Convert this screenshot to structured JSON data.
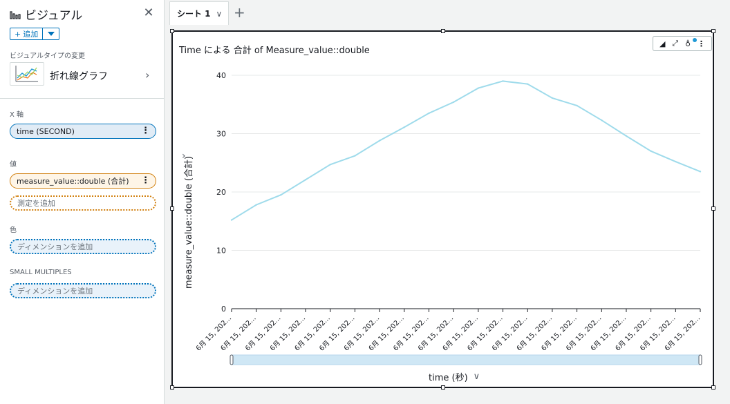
{
  "panel": {
    "title": "ビジュアル",
    "add_label": "追加",
    "visual_type_label": "ビジュアルタイプの変更",
    "visual_type_name": "折れ線グラフ",
    "x_axis_label": "X 軸",
    "x_field": "time (SECOND)",
    "value_label": "値",
    "value_field": "measure_value::double (合計)",
    "value_add_placeholder": "測定を追加",
    "color_label": "色",
    "color_placeholder": "ディメンションを追加",
    "small_multiples_label": "SMALL MULTIPLES",
    "small_multiples_placeholder": "ディメンションを追加"
  },
  "tabs": [
    {
      "label": "シート 1"
    }
  ],
  "visual": {
    "title": "Time による 合計 of Measure_value::double"
  },
  "chart_data": {
    "type": "line",
    "ylabel": "measure_value::double (合計)",
    "xlabel": "time (秒)",
    "ylim": [
      0,
      40
    ],
    "yticks": [
      0,
      10,
      20,
      30,
      40
    ],
    "categories": [
      "6月 15, 202...",
      "6月 15, 202...",
      "6月 15, 202...",
      "6月 15, 202...",
      "6月 15, 202...",
      "6月 15, 202...",
      "6月 15, 202...",
      "6月 15, 202...",
      "6月 15, 202...",
      "6月 15, 202...",
      "6月 15, 202...",
      "6月 15, 202...",
      "6月 15, 202...",
      "6月 15, 202...",
      "6月 15, 202...",
      "6月 15, 202...",
      "6月 15, 202...",
      "6月 15, 202...",
      "6月 15, 202...",
      "6月 15, 202..."
    ],
    "series": [
      {
        "values": [
          15.2,
          17.8,
          19.5,
          22.1,
          24.7,
          26.2,
          28.8,
          31.1,
          33.5,
          35.4,
          37.8,
          39.0,
          38.5,
          36.1,
          34.8,
          32.3,
          29.6,
          27.0,
          25.2,
          23.5
        ],
        "color": "#9fdbeb"
      }
    ],
    "grid": true
  }
}
